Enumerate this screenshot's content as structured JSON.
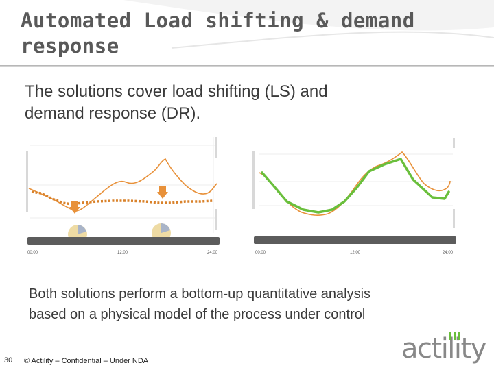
{
  "header": {
    "title_line1": "Automated Load shifting & demand",
    "title_line2": "response"
  },
  "body": {
    "subtitle_line1": "The solutions cover load shifting (LS) and",
    "subtitle_line2": "demand response (DR).",
    "bottom_line1": "Both solutions perform a bottom-up quantitative analysis",
    "bottom_line2": "based on a physical model of the process under control"
  },
  "charts": {
    "left": {
      "time_start": "00:00",
      "time_mid": "12:00",
      "time_end": "24:00"
    },
    "right": {
      "time_start": "00:00",
      "time_mid": "12:00",
      "time_end": "24:00"
    }
  },
  "footer": {
    "page_number": "30",
    "text": "© Actility – Confidential – Under NDA"
  },
  "logo": {
    "text": "actility"
  },
  "colors": {
    "title": "#595959",
    "orange": "#e8913a",
    "dotted": "#d9822b",
    "green": "#6abf3c",
    "timeline": "#595959"
  }
}
